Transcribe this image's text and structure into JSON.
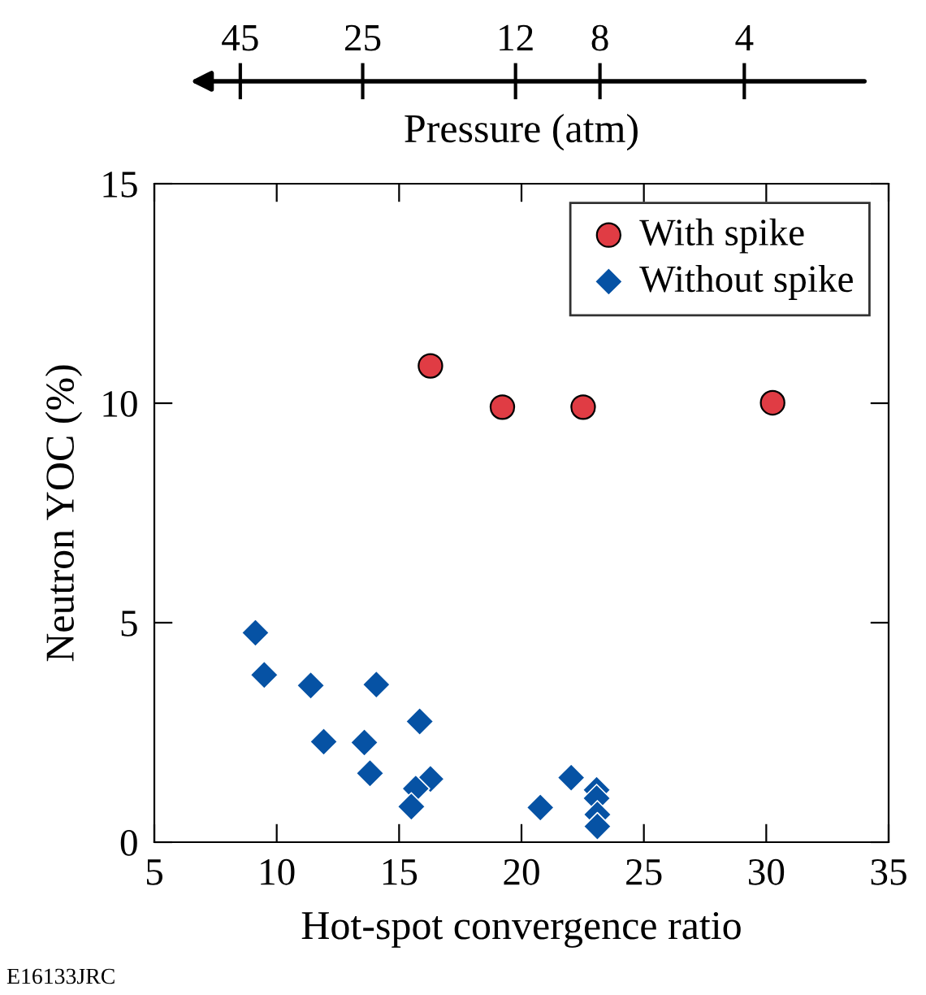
{
  "chart_data": {
    "type": "scatter",
    "xlabel": "Hot-spot convergence ratio",
    "ylabel": "Neutron YOC (%)",
    "x2label": "Pressure (atm)",
    "xlim": [
      5,
      35
    ],
    "xticks": [
      5,
      10,
      15,
      20,
      25,
      30,
      35
    ],
    "ylim": [
      0,
      15
    ],
    "yticks": [
      0,
      5,
      10,
      15
    ],
    "x2lim": [
      68,
      2
    ],
    "x2ticks": [
      45,
      25,
      12,
      8,
      4
    ],
    "log": "x2",
    "legend": "top right",
    "grid": false,
    "series": [
      {
        "name": "With spike",
        "color": "#e03c44",
        "marker": "circle",
        "x": [
          16.28,
          19.22,
          22.52,
          30.26
        ],
        "values": [
          10.85,
          9.91,
          9.91,
          10.01
        ]
      },
      {
        "name": "Without spike",
        "color": "#0652a4",
        "marker": "diamond",
        "x": [
          9.13,
          9.49,
          11.39,
          14.07,
          11.92,
          13.58,
          13.81,
          15.84,
          16.28,
          15.68,
          15.5,
          20.77,
          22.03,
          23.07,
          23.07,
          23.1,
          23.1
        ],
        "values": [
          4.77,
          3.81,
          3.57,
          3.59,
          2.29,
          2.27,
          1.57,
          2.75,
          1.44,
          1.22,
          0.81,
          0.79,
          1.47,
          1.19,
          1.0,
          0.63,
          0.36
        ]
      }
    ],
    "annotations": [
      "E16133JRC"
    ]
  }
}
